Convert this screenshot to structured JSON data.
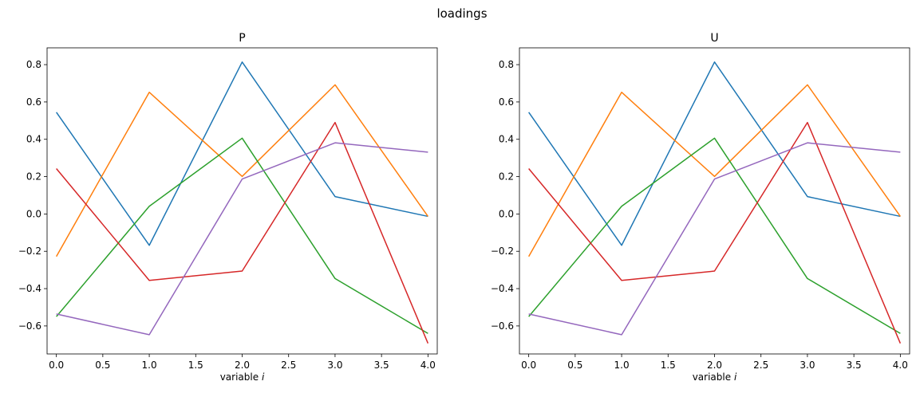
{
  "figure": {
    "suptitle": "loadings"
  },
  "chart_data": [
    {
      "type": "line",
      "title": "P",
      "xlabel": "variable",
      "xlabel_var": "i",
      "ylabel": "",
      "xlim": [
        -0.1,
        4.1
      ],
      "ylim": [
        -0.75,
        0.89
      ],
      "xticks": [
        0.0,
        0.5,
        1.0,
        1.5,
        2.0,
        2.5,
        3.0,
        3.5,
        4.0
      ],
      "xtick_labels": [
        "0.0",
        "0.5",
        "1.0",
        "1.5",
        "2.0",
        "2.5",
        "3.0",
        "3.5",
        "4.0"
      ],
      "yticks": [
        -0.6,
        -0.4,
        -0.2,
        0.0,
        0.2,
        0.4,
        0.6,
        0.8
      ],
      "ytick_labels": [
        "−0.6",
        "−0.4",
        "−0.2",
        "0.0",
        "0.2",
        "0.4",
        "0.6",
        "0.8"
      ],
      "grid": false,
      "x": [
        0,
        1,
        2,
        3,
        4
      ],
      "series": [
        {
          "color": "#1f77b4",
          "values": [
            0.545,
            -0.168,
            0.814,
            0.093,
            -0.013
          ]
        },
        {
          "color": "#ff7f0e",
          "values": [
            -0.228,
            0.652,
            0.201,
            0.692,
            -0.013
          ]
        },
        {
          "color": "#2ca02c",
          "values": [
            -0.55,
            0.041,
            0.406,
            -0.346,
            -0.64
          ]
        },
        {
          "color": "#d62728",
          "values": [
            0.243,
            -0.356,
            -0.306,
            0.49,
            -0.693
          ]
        },
        {
          "color": "#9467bd",
          "values": [
            -0.536,
            -0.647,
            0.187,
            0.381,
            0.331
          ]
        }
      ]
    },
    {
      "type": "line",
      "title": "U",
      "xlabel": "variable",
      "xlabel_var": "i",
      "ylabel": "",
      "xlim": [
        -0.1,
        4.1
      ],
      "ylim": [
        -0.75,
        0.89
      ],
      "xticks": [
        0.0,
        0.5,
        1.0,
        1.5,
        2.0,
        2.5,
        3.0,
        3.5,
        4.0
      ],
      "xtick_labels": [
        "0.0",
        "0.5",
        "1.0",
        "1.5",
        "2.0",
        "2.5",
        "3.0",
        "3.5",
        "4.0"
      ],
      "yticks": [
        -0.6,
        -0.4,
        -0.2,
        0.0,
        0.2,
        0.4,
        0.6,
        0.8
      ],
      "ytick_labels": [
        "−0.6",
        "−0.4",
        "−0.2",
        "0.0",
        "0.2",
        "0.4",
        "0.6",
        "0.8"
      ],
      "grid": false,
      "x": [
        0,
        1,
        2,
        3,
        4
      ],
      "series": [
        {
          "color": "#1f77b4",
          "values": [
            0.545,
            -0.168,
            0.814,
            0.093,
            -0.013
          ]
        },
        {
          "color": "#ff7f0e",
          "values": [
            -0.228,
            0.652,
            0.201,
            0.692,
            -0.013
          ]
        },
        {
          "color": "#2ca02c",
          "values": [
            -0.55,
            0.041,
            0.406,
            -0.346,
            -0.64
          ]
        },
        {
          "color": "#d62728",
          "values": [
            0.243,
            -0.356,
            -0.306,
            0.49,
            -0.693
          ]
        },
        {
          "color": "#9467bd",
          "values": [
            -0.536,
            -0.647,
            0.187,
            0.381,
            0.331
          ]
        }
      ]
    }
  ]
}
